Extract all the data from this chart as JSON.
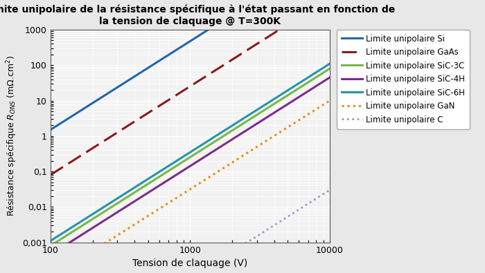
{
  "title_line1": "Limite unipolaire de la résistance spécifique à l'état passant en fonction de",
  "title_line2": "la tension de claquage @ T=300K",
  "xlabel": "Tension de claquage (V)",
  "xmin": 100,
  "xmax": 10000,
  "ymin": 0.001,
  "ymax": 1000,
  "materials": [
    {
      "name": "Limite unipolaire Si",
      "color": "#2166ac",
      "linestyle": "solid",
      "linewidth": 2.2,
      "coeff": 1.5e-05,
      "exponent": 2.5
    },
    {
      "name": "Limite unipolaire GaAs",
      "color": "#8B1A1A",
      "linestyle": "dashed",
      "linewidth": 2.2,
      "coeff": 8e-07,
      "exponent": 2.5
    },
    {
      "name": "Limite unipolaire SiC-3C",
      "color": "#7ab648",
      "linestyle": "solid",
      "linewidth": 2.2,
      "coeff": 8e-09,
      "exponent": 2.5
    },
    {
      "name": "Limite unipolaire SiC-4H",
      "color": "#7b2d8b",
      "linestyle": "solid",
      "linewidth": 2.2,
      "coeff": 4.5e-09,
      "exponent": 2.5
    },
    {
      "name": "Limite unipolaire SiC-6H",
      "color": "#2196a8",
      "linestyle": "solid",
      "linewidth": 2.2,
      "coeff": 1.1e-08,
      "exponent": 2.5
    },
    {
      "name": "Limite unipolaire GaN",
      "color": "#e88e1a",
      "linestyle": "dotted",
      "linewidth": 2.2,
      "coeff": 1e-09,
      "exponent": 2.5
    },
    {
      "name": "Limite unipolaire C",
      "color": "#9999cc",
      "linestyle": "dotted",
      "linewidth": 2.0,
      "coeff": 3e-12,
      "exponent": 2.5
    }
  ],
  "background_color": "#e8e8e8",
  "plot_bg_color": "#f2f2f2",
  "grid_major_color": "#ffffff",
  "grid_minor_color": "#ffffff",
  "legend_fontsize": 8.5,
  "title_fontsize": 10,
  "tick_labelsize": 9,
  "xlabel_fontsize": 10,
  "ylabel_fontsize": 9
}
